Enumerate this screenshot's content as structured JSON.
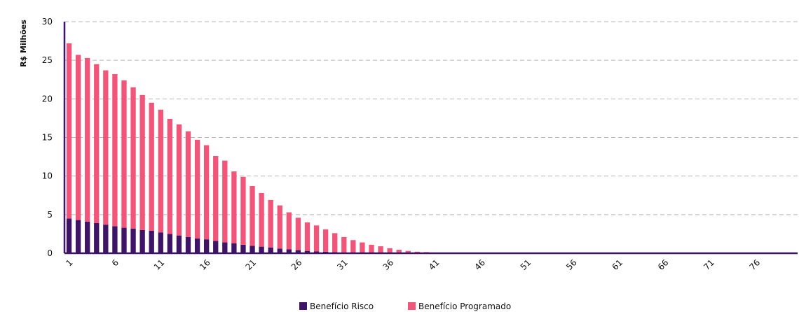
{
  "chart_data": {
    "type": "bar",
    "stacked": true,
    "ylabel": "R$ Milhões",
    "xlabel": "",
    "ylim": [
      0,
      30
    ],
    "yticks": [
      0,
      5,
      10,
      15,
      20,
      25,
      30
    ],
    "grid": true,
    "legend_position": "bottom",
    "x": [
      1,
      2,
      3,
      4,
      5,
      6,
      7,
      8,
      9,
      10,
      11,
      12,
      13,
      14,
      15,
      16,
      17,
      18,
      19,
      20,
      21,
      22,
      23,
      24,
      25,
      26,
      27,
      28,
      29,
      30,
      31,
      32,
      33,
      34,
      35,
      36,
      37,
      38,
      39,
      40,
      41,
      42,
      43,
      44,
      45,
      46,
      47,
      48,
      49,
      50,
      51,
      52,
      53,
      54,
      55,
      56,
      57,
      58,
      59,
      60,
      61,
      62,
      63,
      64,
      65,
      66,
      67,
      68,
      69,
      70,
      71,
      72,
      73,
      74,
      75,
      76,
      77,
      78,
      79,
      80
    ],
    "xtick_labels": [
      "1",
      "6",
      "11",
      "16",
      "21",
      "26",
      "31",
      "36",
      "41",
      "46",
      "51",
      "56",
      "61",
      "66",
      "71",
      "76"
    ],
    "series": [
      {
        "name": "Benefício Risco",
        "color": "#3d1466",
        "values": [
          4.5,
          4.3,
          4.1,
          3.9,
          3.7,
          3.5,
          3.3,
          3.2,
          3.0,
          2.9,
          2.7,
          2.5,
          2.3,
          2.1,
          1.9,
          1.8,
          1.6,
          1.4,
          1.3,
          1.1,
          0.95,
          0.85,
          0.75,
          0.6,
          0.5,
          0.4,
          0.3,
          0.25,
          0.2,
          0.15,
          0.1,
          0.08,
          0.06,
          0.05,
          0.04,
          0.03,
          0.02,
          0.01,
          0.01,
          0.01,
          0,
          0,
          0,
          0,
          0,
          0,
          0,
          0,
          0,
          0,
          0,
          0,
          0,
          0,
          0,
          0,
          0,
          0,
          0,
          0,
          0,
          0,
          0,
          0,
          0,
          0,
          0,
          0,
          0,
          0,
          0,
          0,
          0,
          0,
          0,
          0,
          0,
          0,
          0,
          0
        ]
      },
      {
        "name": "Benefício Programado",
        "color": "#f2557a",
        "values": [
          22.7,
          21.4,
          21.2,
          20.6,
          20.0,
          19.7,
          19.1,
          18.3,
          17.5,
          16.6,
          15.9,
          14.9,
          14.4,
          13.7,
          12.8,
          12.2,
          11.0,
          10.6,
          9.3,
          8.8,
          7.75,
          6.95,
          6.15,
          5.6,
          4.8,
          4.2,
          3.7,
          3.35,
          2.9,
          2.45,
          2.0,
          1.62,
          1.34,
          1.05,
          0.86,
          0.62,
          0.43,
          0.29,
          0.19,
          0.14,
          0.05,
          0.02,
          0,
          0,
          0,
          0,
          0,
          0,
          0,
          0,
          0,
          0,
          0,
          0,
          0,
          0,
          0,
          0,
          0,
          0,
          0,
          0,
          0,
          0,
          0,
          0,
          0,
          0,
          0,
          0,
          0,
          0,
          0,
          0,
          0,
          0,
          0,
          0,
          0,
          0
        ]
      }
    ]
  }
}
